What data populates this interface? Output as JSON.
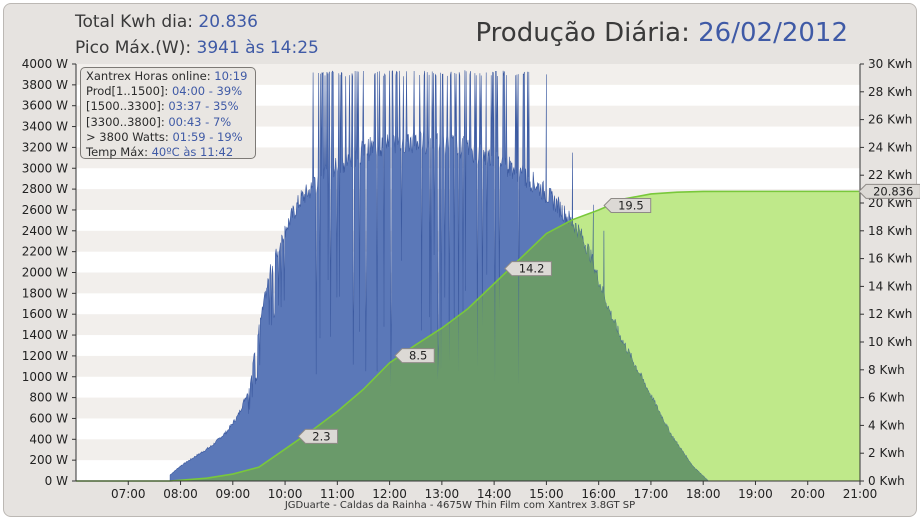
{
  "header": {
    "total_label": "Total Kwh dia:",
    "total_value": "20.836",
    "peak_label": "Pico Máx.(W):",
    "peak_value": "3941 às 14:25",
    "title_label": "Produção Diária:",
    "title_date": "26/02/2012"
  },
  "stats_box": [
    {
      "label": "Xantrex Horas online:",
      "value": "10:19"
    },
    {
      "label": "Prod[1..1500]:",
      "value": "04:00 - 39%"
    },
    {
      "label": "[1500..3300]:",
      "value": "03:37 - 35%"
    },
    {
      "label": "[3300..3800]:",
      "value": "00:43 - 7%"
    },
    {
      "label": "> 3800 Watts:",
      "value": "01:59 - 19%"
    },
    {
      "label": "Temp Máx:",
      "value": "40ºC às 11:42"
    }
  ],
  "footer": "JGDuarte  -  Caldas da Rainha  -  4675W Thin Film com Xantrex 3.8GT SP",
  "colors": {
    "power_fill": "#5b78b8",
    "power_line": "#3c5aa0",
    "energy_fill": "#bfe98a",
    "energy_line": "#79c83b",
    "overlap_fill": "#6a9a6a",
    "plot_band": "#f2efec"
  },
  "chart_data": {
    "type": "area",
    "x_ticks": [
      "07:00",
      "08:00",
      "09:00",
      "10:00",
      "11:00",
      "12:00",
      "13:00",
      "14:00",
      "15:00",
      "16:00",
      "17:00",
      "18:00",
      "19:00",
      "20:00",
      "21:00"
    ],
    "xlim_hours": [
      6.0,
      21.0
    ],
    "y_left": {
      "ticks": [
        "0 W",
        "200 W",
        "400 W",
        "600 W",
        "800 W",
        "1000 W",
        "1200 W",
        "1400 W",
        "1600 W",
        "1800 W",
        "2000 W",
        "2200 W",
        "2400 W",
        "2600 W",
        "2800 W",
        "3000 W",
        "3200 W",
        "3400 W",
        "3600 W",
        "3800 W",
        "4000 W"
      ],
      "ylim": [
        0,
        4000
      ]
    },
    "y_right": {
      "ticks": [
        "0 Kwh",
        "2 Kwh",
        "4 Kwh",
        "6 Kwh",
        "8 Kwh",
        "10 Kwh",
        "12 Kwh",
        "14 Kwh",
        "16 Kwh",
        "18 Kwh",
        "20 Kwh",
        "22 Kwh",
        "24 Kwh",
        "26 Kwh",
        "28 Kwh",
        "30 Kwh"
      ],
      "ylim": [
        0,
        30
      ]
    },
    "series": [
      {
        "axis": "left",
        "envelope_x": [
          7.8,
          8.0,
          8.3,
          8.6,
          8.9,
          9.1,
          9.3,
          9.5,
          9.7,
          10.0,
          10.3,
          10.6,
          10.9,
          11.2,
          11.6,
          12.0,
          12.5,
          13.0,
          13.5,
          14.0,
          14.4,
          14.8,
          15.2,
          15.6,
          15.8,
          16.0,
          16.2,
          16.4,
          16.6,
          16.8,
          17.0,
          17.2,
          17.4,
          17.6,
          17.8,
          18.0,
          18.1
        ],
        "envelope_y": [
          60,
          150,
          250,
          350,
          500,
          650,
          900,
          1500,
          2050,
          2500,
          2800,
          2950,
          3100,
          3200,
          3300,
          3350,
          3380,
          3350,
          3300,
          3200,
          3100,
          2950,
          2750,
          2500,
          2300,
          2000,
          1700,
          1450,
          1250,
          1050,
          850,
          650,
          450,
          300,
          150,
          50,
          0
        ],
        "peak_band_hours": [
          10.5,
          14.7
        ],
        "peak_value": 3941,
        "tail_spikes": [
          [
            15.0,
            3900
          ],
          [
            15.5,
            3150
          ],
          [
            15.9,
            2650
          ],
          [
            16.1,
            2400
          ],
          [
            16.5,
            1300
          ],
          [
            16.7,
            1100
          ]
        ]
      },
      {
        "axis": "right",
        "x": [
          6.0,
          7.8,
          8.5,
          9.0,
          9.5,
          10.0,
          10.5,
          11.0,
          11.5,
          12.0,
          12.5,
          13.0,
          13.5,
          14.0,
          14.5,
          15.0,
          15.5,
          16.0,
          16.5,
          17.0,
          17.5,
          18.0,
          19.0,
          21.0
        ],
        "y": [
          0,
          0.0,
          0.2,
          0.5,
          1.0,
          2.3,
          3.6,
          5.0,
          6.6,
          8.5,
          9.8,
          11.0,
          12.4,
          14.2,
          16.0,
          17.8,
          18.8,
          19.5,
          20.3,
          20.65,
          20.78,
          20.83,
          20.836,
          20.836
        ]
      }
    ],
    "labels": [
      {
        "x": 10.35,
        "value": "2.3"
      },
      {
        "x": 12.2,
        "value": "8.5"
      },
      {
        "x": 14.3,
        "value": "14.2"
      },
      {
        "x": 16.2,
        "value": "19.5"
      },
      {
        "x": 21.0,
        "value": "20.836"
      }
    ]
  }
}
